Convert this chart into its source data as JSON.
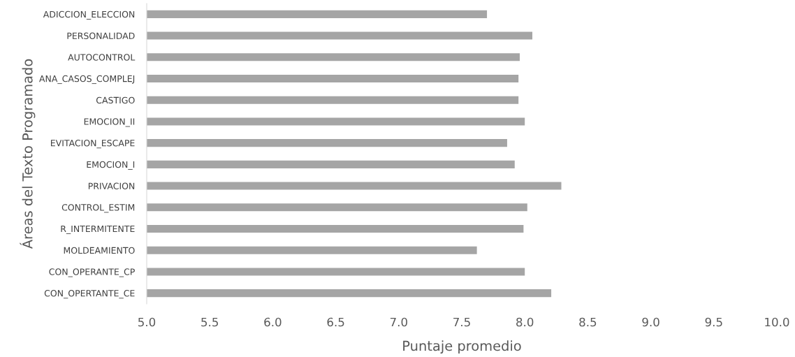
{
  "chart_data": {
    "type": "bar",
    "orientation": "horizontal",
    "xlabel": "Puntaje promedio",
    "ylabel": "Áreas del Texto Programado",
    "categories": [
      "ADICCION_ELECCION",
      "PERSONALIDAD",
      "AUTOCONTROL",
      "ANA_CASOS_COMPLEJ",
      "CASTIGO",
      "EMOCION_II",
      "EVITACION_ESCAPE",
      "EMOCION_I",
      "PRIVACION",
      "CONTROL_ESTIM",
      "R_INTERMITENTE",
      "MOLDEAMIENTO",
      "CON_OPERANTE_CP",
      "CON_OPERTANTE_CE"
    ],
    "values": [
      7.7,
      8.06,
      7.96,
      7.95,
      7.95,
      8.0,
      7.86,
      7.92,
      8.29,
      8.02,
      7.99,
      7.62,
      8.0,
      8.21
    ],
    "color": "#a5a5a5",
    "xlim": [
      5.0,
      10.0
    ],
    "xticks": [
      {
        "value": 5.0,
        "label": "5.0"
      },
      {
        "value": 5.5,
        "label": "5.5"
      },
      {
        "value": 6.0,
        "label": "6.0"
      },
      {
        "value": 6.5,
        "label": "6.5"
      },
      {
        "value": 7.0,
        "label": "7.0"
      },
      {
        "value": 7.5,
        "label": "7.5"
      },
      {
        "value": 8.0,
        "label": "8.0"
      },
      {
        "value": 8.5,
        "label": "8.5"
      },
      {
        "value": 9.0,
        "label": "9.0"
      },
      {
        "value": 9.5,
        "label": "9.5"
      },
      {
        "value": 10.0,
        "label": "10.0"
      }
    ],
    "grid": false,
    "legend": false
  }
}
